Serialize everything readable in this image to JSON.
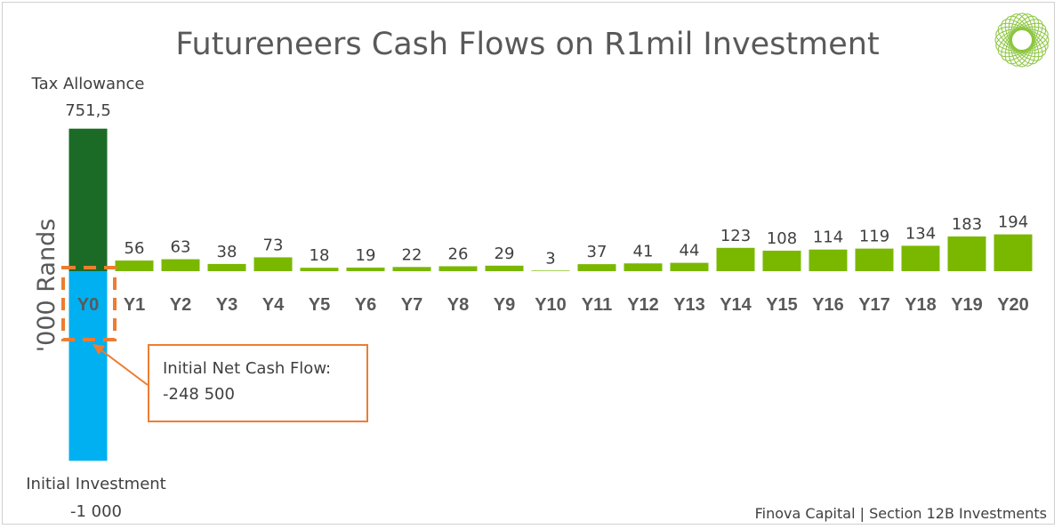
{
  "colors": {
    "positive_bar": "#7ab800",
    "tax_allowance": "#1b6b26",
    "initial_investment": "#00b0f0",
    "highlight_orange": "#ed7d31",
    "logo_green": "#8cc63f",
    "text": "#404040"
  },
  "chart_data": {
    "type": "bar",
    "title": "Futureneers Cash Flows on R1mil Investment",
    "ylabel": "'000 Rands",
    "xlabel": "",
    "ylim": [
      -1000,
      751.5
    ],
    "categories": [
      "Y0",
      "Y1",
      "Y2",
      "Y3",
      "Y4",
      "Y5",
      "Y6",
      "Y7",
      "Y8",
      "Y9",
      "Y10",
      "Y11",
      "Y12",
      "Y13",
      "Y14",
      "Y15",
      "Y16",
      "Y17",
      "Y18",
      "Y19",
      "Y20"
    ],
    "values": [
      null,
      56,
      63,
      38,
      73,
      18,
      19,
      22,
      26,
      29,
      3,
      37,
      41,
      44,
      123,
      108,
      114,
      119,
      134,
      183,
      194
    ],
    "value_labels": [
      "",
      "56",
      "63",
      "38",
      "73",
      "18",
      "19",
      "22",
      "26",
      "29",
      "3",
      "37",
      "41",
      "44",
      "123",
      "108",
      "114",
      "119",
      "134",
      "183",
      "194"
    ],
    "y0_components": {
      "tax_allowance": {
        "label": "Tax Allowance",
        "value": 751.5,
        "value_label": "751,5"
      },
      "initial_investment": {
        "label": "Initial Investment",
        "value": -1000,
        "value_label": "-1 000"
      }
    },
    "callout": {
      "line1": "Initial Net Cash Flow:",
      "line2": "-248 500"
    },
    "footer": "Finova Capital | Section 12B Investments",
    "grid": false
  }
}
